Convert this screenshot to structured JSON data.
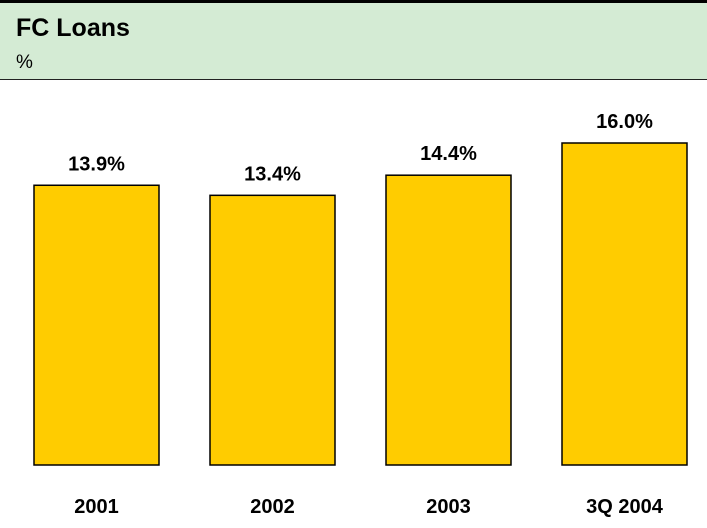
{
  "header": {
    "title": "FC Loans",
    "subtitle": "%"
  },
  "colors": {
    "header_bg": "#d4ebd4",
    "bar_fill": "#ffcc00",
    "bar_stroke": "#000000"
  },
  "chart_data": {
    "type": "bar",
    "title": "FC Loans",
    "ylabel": "%",
    "categories": [
      "2001",
      "2002",
      "2003",
      "3Q 2004"
    ],
    "values": [
      13.9,
      13.4,
      14.4,
      16.0
    ],
    "value_labels": [
      "13.9%",
      "13.4%",
      "14.4%",
      "16.0%"
    ],
    "ylim": [
      0,
      16.0
    ],
    "grid": false,
    "legend": "none"
  }
}
